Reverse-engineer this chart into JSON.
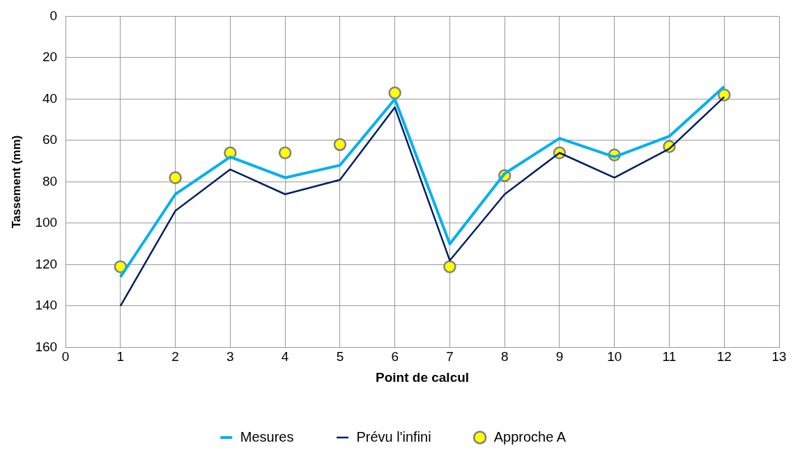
{
  "chart_data": {
    "type": "line",
    "xlabel": "Point de calcul",
    "ylabel": "Tassement (mm)",
    "x": [
      1,
      2,
      3,
      4,
      5,
      6,
      7,
      8,
      9,
      10,
      11,
      12
    ],
    "xlim": [
      0,
      13
    ],
    "xticks": [
      0,
      1,
      2,
      3,
      4,
      5,
      6,
      7,
      8,
      9,
      10,
      11,
      12,
      13
    ],
    "ylim": [
      160,
      0
    ],
    "yticks": [
      0,
      20,
      40,
      60,
      80,
      100,
      120,
      140,
      160
    ],
    "grid": true,
    "legend": "bottom",
    "series": [
      {
        "name": "Approche A",
        "type": "scatter",
        "color": "#ffff00",
        "marker": "circle",
        "values": [
          121,
          78,
          66,
          66,
          62,
          37,
          121,
          77,
          66,
          67,
          63,
          38
        ]
      },
      {
        "name": "Mesures",
        "color": "#00b0f0",
        "marker": "none",
        "values": [
          126,
          86,
          68,
          78,
          72,
          40,
          110,
          76,
          59,
          68,
          58,
          34
        ]
      },
      {
        "name": "Prévu l'infini",
        "color": "#002060",
        "marker": "none",
        "values": [
          140,
          94,
          74,
          86,
          79,
          44,
          118,
          86,
          66,
          78,
          64,
          39
        ]
      }
    ]
  }
}
